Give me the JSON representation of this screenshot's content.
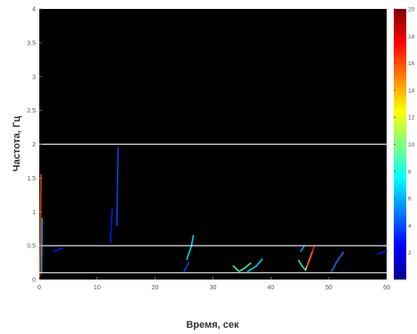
{
  "chart_data": {
    "type": "heatmap",
    "title": "",
    "xlabel": "Время, сек",
    "ylabel": "Частота, Гц",
    "xlim": [
      0,
      60
    ],
    "ylim": [
      0,
      4
    ],
    "x_ticks": [
      0,
      10,
      20,
      30,
      40,
      50,
      60
    ],
    "y_ticks": [
      0,
      0.5,
      1,
      1.5,
      2,
      2.5,
      3,
      3.5,
      4
    ],
    "background_color": "#000000",
    "grid": false,
    "reference_lines_hz": [
      0.1,
      0.5,
      2.0
    ],
    "reference_line_color": "#e0e0e0",
    "colorbar": {
      "colormap": "jet",
      "range": [
        0,
        20
      ],
      "ticks": [
        2,
        4,
        6,
        8,
        10,
        12,
        14,
        16,
        18,
        20
      ],
      "placement": "right"
    },
    "features": [
      {
        "kind": "ridge",
        "points": [
          [
            0.1,
            0.05
          ],
          [
            0.2,
            0.6
          ],
          [
            0.25,
            1.2
          ],
          [
            0.3,
            1.55
          ]
        ],
        "value": 16
      },
      {
        "kind": "ridge",
        "points": [
          [
            0.4,
            0.1
          ],
          [
            0.45,
            0.5
          ],
          [
            0.5,
            0.9
          ]
        ],
        "value": 6
      },
      {
        "kind": "ridge",
        "points": [
          [
            2.5,
            0.42
          ],
          [
            4.0,
            0.46
          ]
        ],
        "value": 3
      },
      {
        "kind": "ridge",
        "points": [
          [
            12.3,
            0.55
          ],
          [
            12.6,
            1.05
          ]
        ],
        "value": 3
      },
      {
        "kind": "ridge",
        "points": [
          [
            13.4,
            0.8
          ],
          [
            13.6,
            1.95
          ]
        ],
        "value": 4
      },
      {
        "kind": "ridge",
        "points": [
          [
            25.5,
            0.3
          ],
          [
            26.3,
            0.5
          ],
          [
            26.6,
            0.65
          ]
        ],
        "value": 7
      },
      {
        "kind": "ridge",
        "points": [
          [
            25.0,
            0.12
          ],
          [
            25.8,
            0.25
          ]
        ],
        "value": 4
      },
      {
        "kind": "ridge",
        "points": [
          [
            33.5,
            0.2
          ],
          [
            34.5,
            0.12
          ],
          [
            35.5,
            0.17
          ],
          [
            36.5,
            0.24
          ]
        ],
        "value": 9
      },
      {
        "kind": "ridge",
        "points": [
          [
            36.0,
            0.12
          ],
          [
            37.5,
            0.2
          ],
          [
            38.5,
            0.3
          ]
        ],
        "value": 7
      },
      {
        "kind": "ridge",
        "points": [
          [
            44.8,
            0.28
          ],
          [
            45.4,
            0.2
          ],
          [
            46.0,
            0.14
          ]
        ],
        "value": 8
      },
      {
        "kind": "ridge",
        "points": [
          [
            46.0,
            0.14
          ],
          [
            46.6,
            0.28
          ],
          [
            47.2,
            0.42
          ]
        ],
        "value": 11
      },
      {
        "kind": "ridge",
        "points": [
          [
            46.3,
            0.2
          ],
          [
            47.0,
            0.35
          ],
          [
            47.5,
            0.5
          ]
        ],
        "value": 17
      },
      {
        "kind": "ridge",
        "points": [
          [
            45.2,
            0.42
          ],
          [
            45.8,
            0.5
          ]
        ],
        "value": 6
      },
      {
        "kind": "ridge",
        "points": [
          [
            50.5,
            0.12
          ],
          [
            51.5,
            0.28
          ],
          [
            52.5,
            0.4
          ]
        ],
        "value": 5
      },
      {
        "kind": "ridge",
        "points": [
          [
            58.5,
            0.38
          ],
          [
            60.0,
            0.42
          ]
        ],
        "value": 3
      }
    ]
  }
}
